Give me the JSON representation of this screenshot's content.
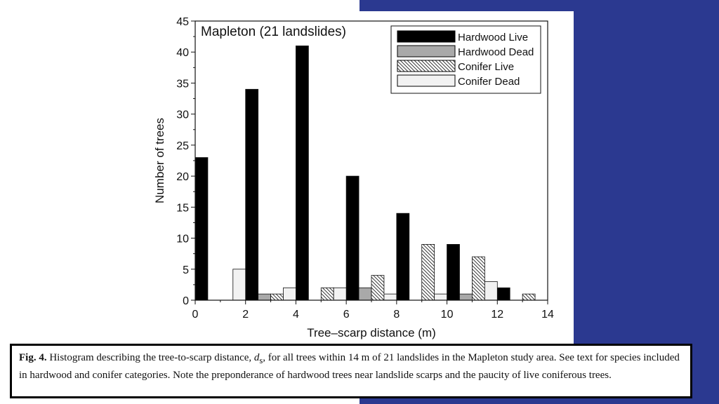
{
  "colors": {
    "panel": "#2b3990",
    "hardwood_live": "#000000",
    "hardwood_dead": "#a9a9a9",
    "conifer_live": "hatched",
    "conifer_dead": "#f2f2f2"
  },
  "chart_data": {
    "type": "bar",
    "title": "Mapleton (21 landslides)",
    "xlabel": "Tree–scarp distance (m)",
    "ylabel": "Number of trees",
    "xlim": [
      0,
      14
    ],
    "ylim": [
      0,
      45
    ],
    "xticks": [
      0,
      2,
      4,
      6,
      8,
      10,
      12,
      14
    ],
    "yticks": [
      0,
      5,
      10,
      15,
      20,
      25,
      30,
      35,
      40,
      45
    ],
    "bin_starts": [
      0,
      2,
      4,
      6,
      8,
      10,
      12
    ],
    "legend_position": "top-right",
    "series": [
      {
        "name": "Hardwood Live",
        "values": [
          23,
          34,
          41,
          20,
          14,
          9,
          2
        ]
      },
      {
        "name": "Hardwood Dead",
        "values": [
          0,
          1,
          0,
          2,
          0,
          1,
          0
        ]
      },
      {
        "name": "Conifer Live",
        "values": [
          0,
          1,
          2,
          4,
          9,
          7,
          1
        ]
      },
      {
        "name": "Conifer Dead",
        "values": [
          5,
          2,
          2,
          1,
          1,
          3,
          0
        ]
      }
    ]
  },
  "caption": {
    "label": "Fig. 4.",
    "text_before": " Histogram describing the tree-to-scarp distance, ",
    "symbol": "d",
    "subscript": "s",
    "text_after": ", for all trees within 14 m of 21 landslides in the Mapleton study area. See text for species included in hardwood and conifer categories. Note the preponderance of hardwood trees near landslide scarps and the paucity of live coniferous trees."
  }
}
